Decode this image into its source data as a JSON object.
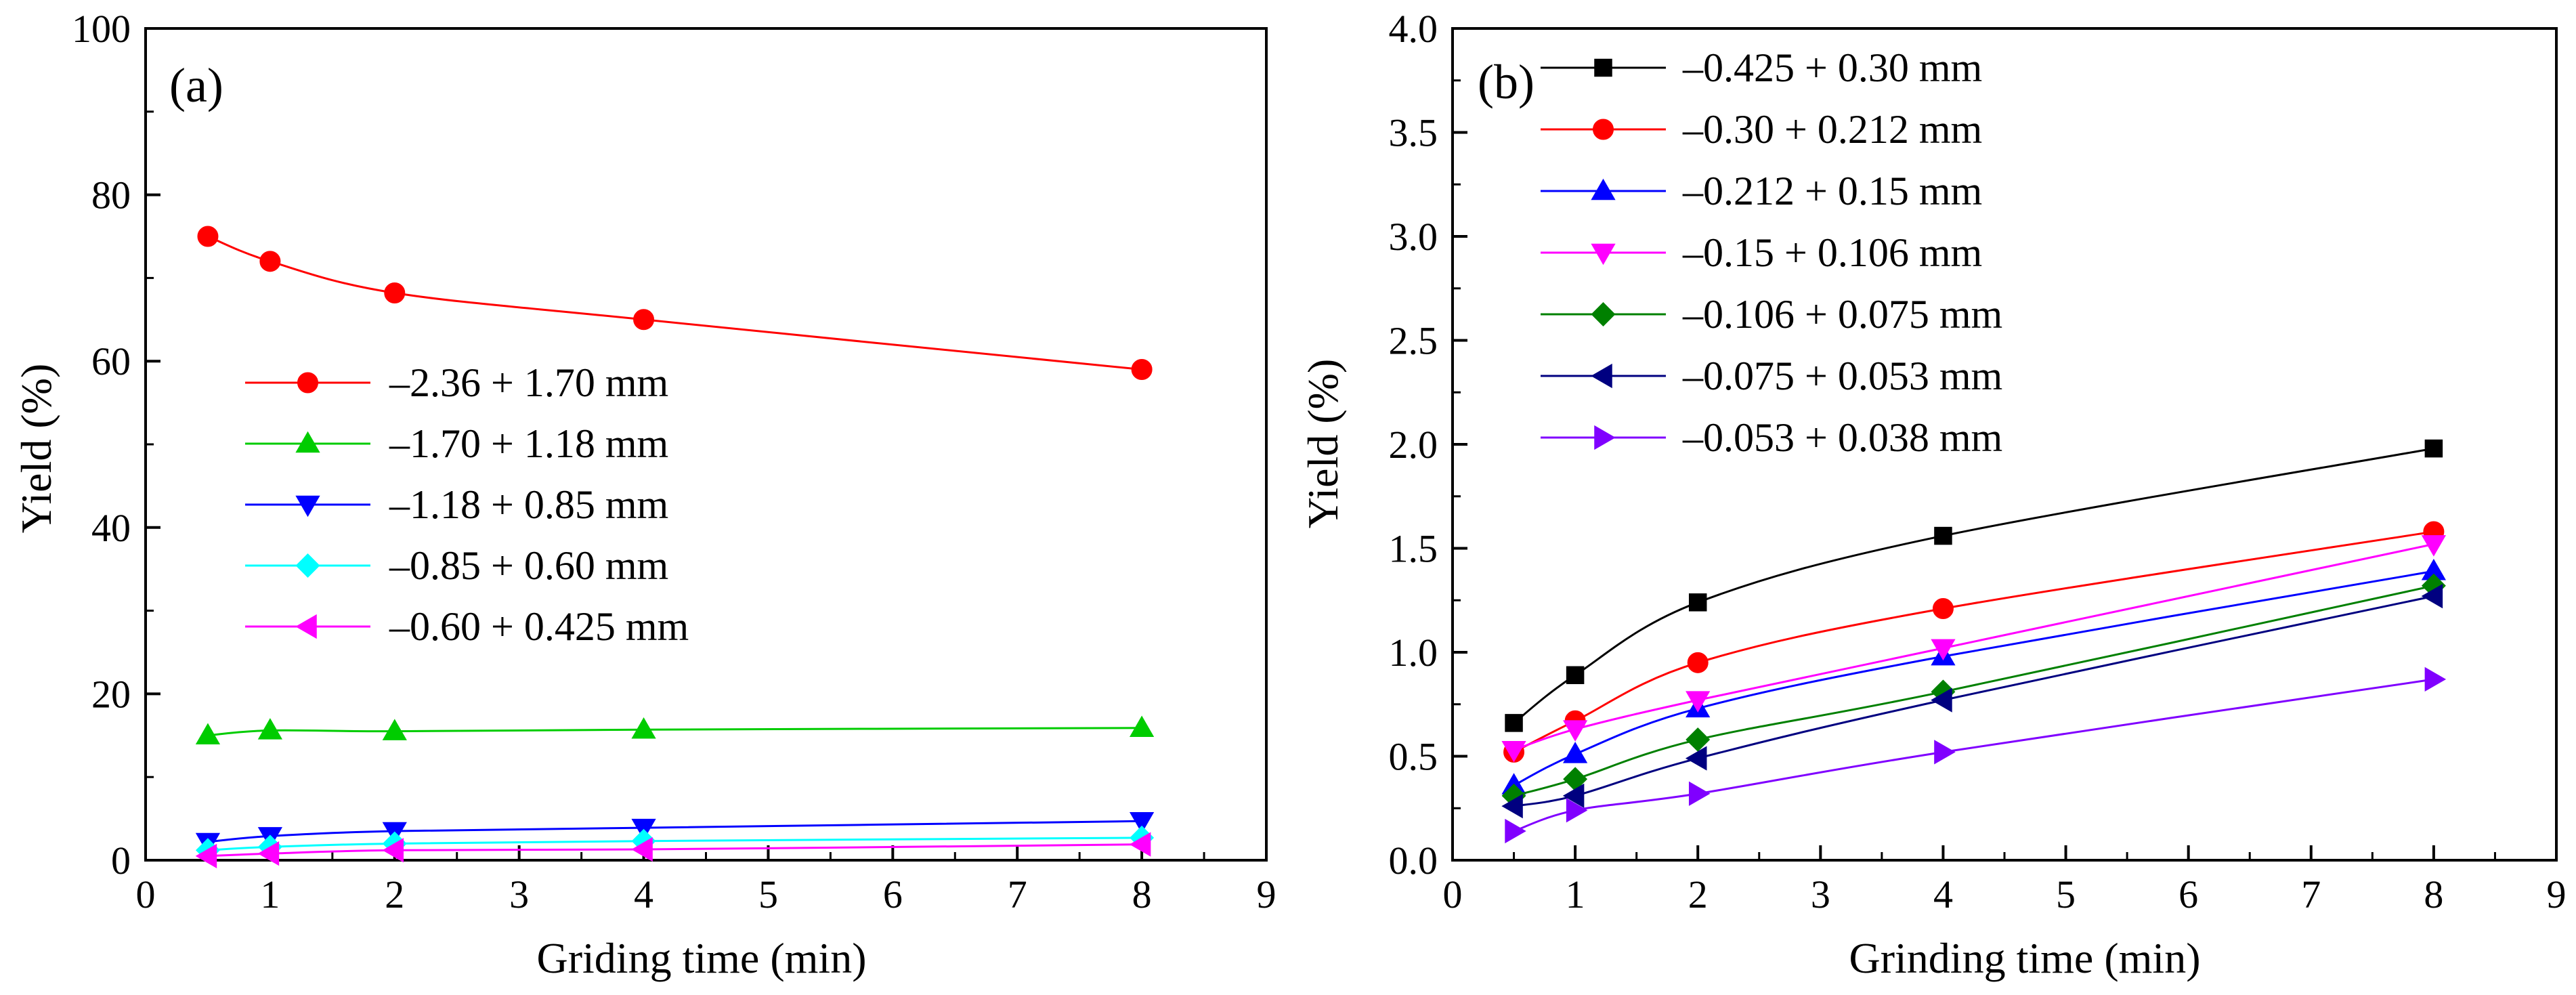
{
  "chart_data": [
    {
      "type": "line",
      "panel_label": "(a)",
      "xlabel": "Griding time (min)",
      "ylabel": "Yield (%)",
      "xlim": [
        0,
        9
      ],
      "ylim": [
        0,
        100
      ],
      "xticks": [
        0,
        1,
        2,
        3,
        4,
        5,
        6,
        7,
        8,
        9
      ],
      "yticks": [
        0,
        20,
        40,
        60,
        80,
        100
      ],
      "x": [
        0.5,
        1,
        2,
        4,
        8
      ],
      "legend_position": "center-left",
      "series": [
        {
          "name": "–2.36 + 1.70 mm",
          "color": "#ff0000",
          "marker": "circle",
          "values": [
            75.0,
            72.0,
            68.2,
            65.0,
            59.0
          ]
        },
        {
          "name": "–1.70 + 1.18 mm",
          "color": "#00cc00",
          "marker": "triangle-up",
          "values": [
            15.0,
            15.6,
            15.5,
            15.7,
            15.9
          ]
        },
        {
          "name": "–1.18 + 0.85 mm",
          "color": "#0000ff",
          "marker": "triangle-down",
          "values": [
            2.2,
            2.9,
            3.5,
            3.9,
            4.7
          ]
        },
        {
          "name": "–0.85 + 0.60 mm",
          "color": "#00ffff",
          "marker": "diamond",
          "values": [
            1.2,
            1.6,
            2.0,
            2.3,
            2.7
          ]
        },
        {
          "name": "–0.60 + 0.425 mm",
          "color": "#ff00ff",
          "marker": "triangle-left",
          "values": [
            0.5,
            0.8,
            1.2,
            1.3,
            1.9
          ]
        }
      ]
    },
    {
      "type": "line",
      "panel_label": "(b)",
      "xlabel": "Grinding time (min)",
      "ylabel": "Yield (%)",
      "xlim": [
        0,
        9
      ],
      "ylim": [
        0,
        4
      ],
      "xticks": [
        0,
        1,
        2,
        3,
        4,
        5,
        6,
        7,
        8,
        9
      ],
      "yticks": [
        0.0,
        0.5,
        1.0,
        1.5,
        2.0,
        2.5,
        3.0,
        3.5,
        4.0
      ],
      "x": [
        0.5,
        1,
        2,
        4,
        8
      ],
      "legend_position": "top-left",
      "series": [
        {
          "name": "–0.425 + 0.30 mm",
          "color": "#000000",
          "marker": "square",
          "values": [
            0.66,
            0.89,
            1.24,
            1.56,
            1.98
          ]
        },
        {
          "name": "–0.30 + 0.212 mm",
          "color": "#ff0000",
          "marker": "circle",
          "values": [
            0.52,
            0.67,
            0.95,
            1.21,
            1.58
          ]
        },
        {
          "name": "–0.212 + 0.15 mm",
          "color": "#0000ff",
          "marker": "triangle-up",
          "values": [
            0.36,
            0.51,
            0.73,
            0.98,
            1.39
          ]
        },
        {
          "name": "–0.15 + 0.106 mm",
          "color": "#ff00ff",
          "marker": "triangle-down",
          "values": [
            0.53,
            0.63,
            0.77,
            1.02,
            1.52
          ]
        },
        {
          "name": "–0.106 + 0.075 mm",
          "color": "#008000",
          "marker": "diamond",
          "values": [
            0.31,
            0.39,
            0.58,
            0.81,
            1.32
          ]
        },
        {
          "name": "–0.075 + 0.053 mm",
          "color": "#000080",
          "marker": "triangle-left",
          "values": [
            0.26,
            0.31,
            0.49,
            0.77,
            1.27
          ]
        },
        {
          "name": "–0.053 + 0.038 mm",
          "color": "#8000ff",
          "marker": "triangle-right",
          "values": [
            0.14,
            0.24,
            0.32,
            0.52,
            0.87
          ]
        }
      ]
    }
  ]
}
